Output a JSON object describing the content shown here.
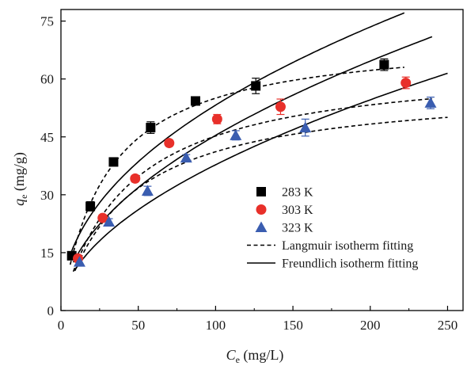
{
  "chart_data": {
    "type": "scatter",
    "title": "",
    "xlabel": {
      "main": "C",
      "sub": "e",
      "unit": " (mg/L)"
    },
    "ylabel": {
      "main": "q",
      "sub": "e",
      "unit": " (mg/g)"
    },
    "xlim": [
      0,
      260
    ],
    "ylim": [
      0,
      78
    ],
    "xticks": [
      0,
      50,
      100,
      150,
      200,
      250
    ],
    "yticks": [
      0,
      15,
      30,
      45,
      60,
      75
    ],
    "grid": false,
    "legend_position": "right-center",
    "series": [
      {
        "name": "283 K",
        "marker": "square",
        "color": "#000000",
        "points": [
          {
            "x": 7,
            "y": 14.2,
            "err": 0.8
          },
          {
            "x": 19,
            "y": 27.0,
            "err": 1.2
          },
          {
            "x": 34,
            "y": 38.5,
            "err": 0.8
          },
          {
            "x": 58,
            "y": 47.4,
            "err": 1.5
          },
          {
            "x": 87,
            "y": 54.3,
            "err": 1.0
          },
          {
            "x": 126,
            "y": 58.2,
            "err": 2.0
          },
          {
            "x": 209,
            "y": 63.7,
            "err": 1.5
          }
        ]
      },
      {
        "name": "303 K",
        "marker": "circle",
        "color": "#e8302a",
        "points": [
          {
            "x": 11,
            "y": 13.5,
            "err": 0.6
          },
          {
            "x": 27,
            "y": 24.0,
            "err": 0.8
          },
          {
            "x": 48,
            "y": 34.2,
            "err": 0.8
          },
          {
            "x": 70,
            "y": 43.4,
            "err": 0.8
          },
          {
            "x": 101,
            "y": 49.6,
            "err": 1.2
          },
          {
            "x": 142,
            "y": 52.8,
            "err": 2.0
          },
          {
            "x": 223,
            "y": 59.0,
            "err": 1.5
          }
        ]
      },
      {
        "name": "323 K",
        "marker": "triangle",
        "color": "#3a5db0",
        "points": [
          {
            "x": 12,
            "y": 12.6,
            "err": 0.8
          },
          {
            "x": 31,
            "y": 23.0,
            "err": 0.8
          },
          {
            "x": 56,
            "y": 31.0,
            "err": 1.2
          },
          {
            "x": 81,
            "y": 39.6,
            "err": 0.8
          },
          {
            "x": 113,
            "y": 45.4,
            "err": 1.2
          },
          {
            "x": 158,
            "y": 47.4,
            "err": 2.2
          },
          {
            "x": 239,
            "y": 53.8,
            "err": 1.5
          }
        ]
      }
    ],
    "fits": [
      {
        "style": "dashed",
        "model": "langmuir",
        "qmax": 71.6,
        "K": 0.0332,
        "x": [
          6,
          222
        ]
      },
      {
        "style": "dashed",
        "model": "langmuir",
        "qmax": 64.8,
        "K": 0.0231,
        "x": [
          8,
          240
        ]
      },
      {
        "style": "dashed",
        "model": "langmuir",
        "qmax": 58.5,
        "K": 0.0237,
        "x": [
          9,
          250
        ]
      },
      {
        "style": "solid",
        "model": "freundlich",
        "Kf": 6.25,
        "n": 2.15,
        "x": [
          6,
          222
        ]
      },
      {
        "style": "solid",
        "model": "freundlich",
        "Kf": 4.33,
        "n": 1.96,
        "x": [
          8,
          240
        ]
      },
      {
        "style": "solid",
        "model": "freundlich",
        "Kf": 3.26,
        "n": 1.88,
        "x": [
          9,
          250
        ]
      }
    ],
    "legend": [
      {
        "label": "283 K",
        "kind": "square",
        "color": "#000000"
      },
      {
        "label": "303 K",
        "kind": "circle",
        "color": "#e8302a"
      },
      {
        "label": "323 K",
        "kind": "triangle",
        "color": "#3a5db0"
      },
      {
        "label": "Langmuir isotherm fitting",
        "kind": "dashed",
        "color": "#000000"
      },
      {
        "label": "Freundlich isotherm fitting",
        "kind": "solid",
        "color": "#000000"
      }
    ]
  }
}
